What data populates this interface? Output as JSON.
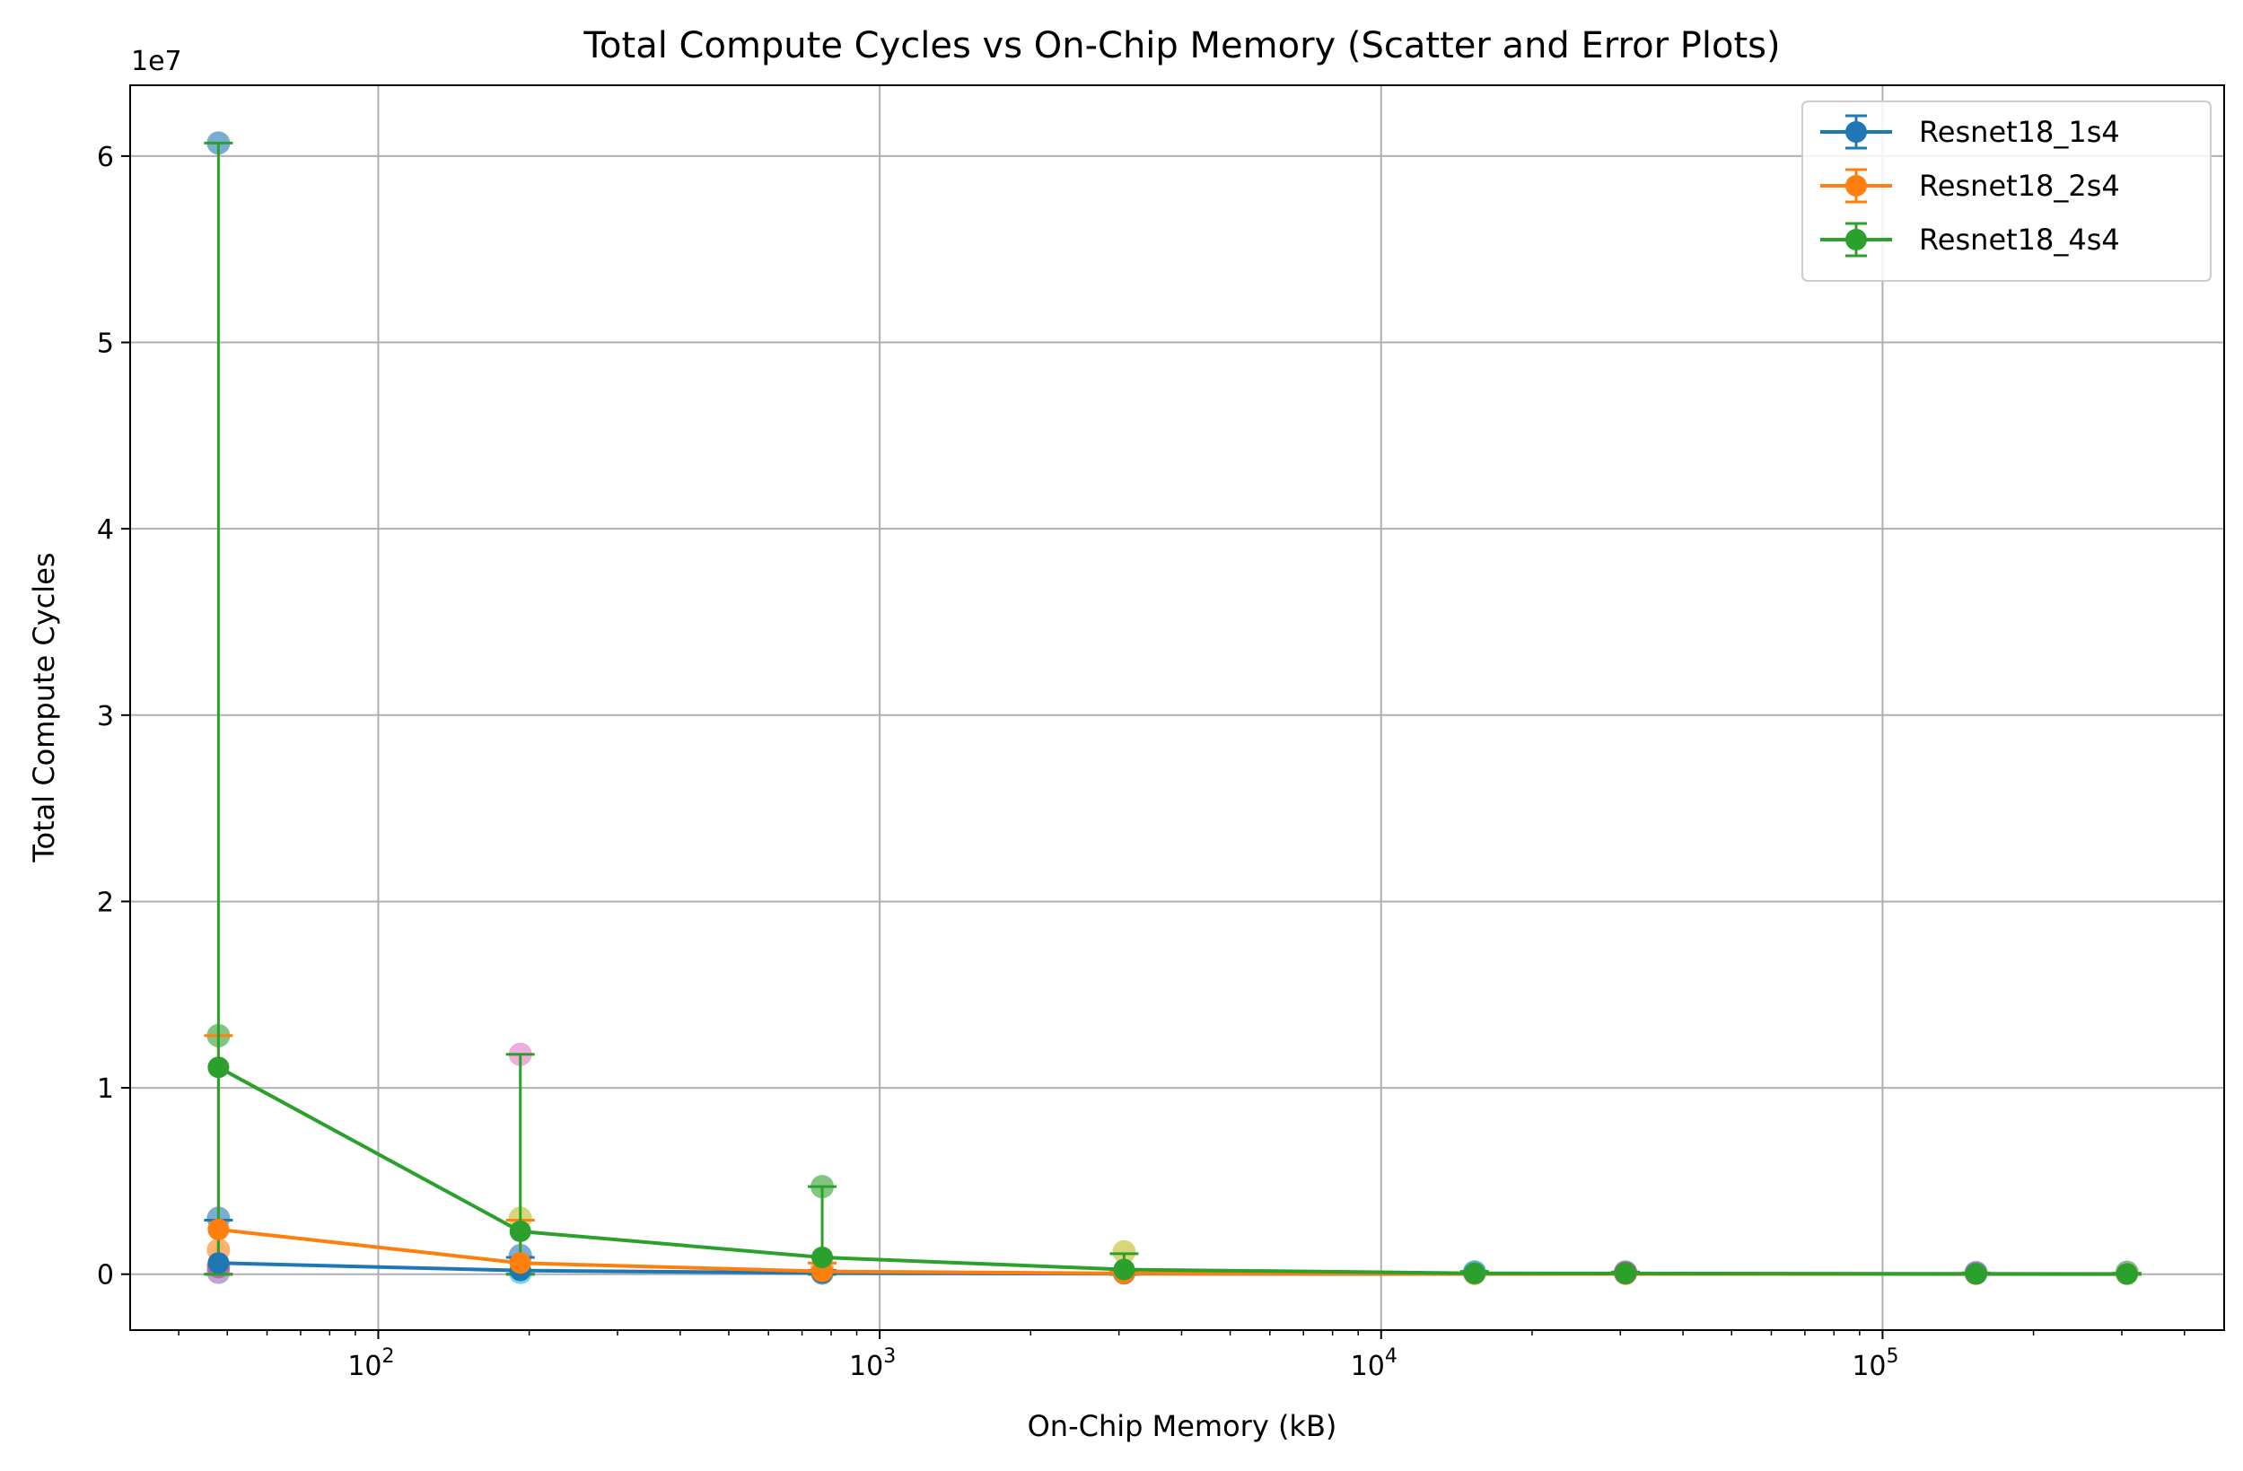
{
  "chart_data": {
    "type": "scatter",
    "title": "Total Compute Cycles vs On-Chip Memory (Scatter and Error Plots)",
    "xlabel": "On-Chip Memory (kB)",
    "ylabel": "Total Compute Cycles",
    "y_offset_label": "1e7",
    "x_scale": "log",
    "xlim": [
      32,
      480000
    ],
    "ylim": [
      -3000000,
      63800000
    ],
    "x_ticks": [
      {
        "value": 100,
        "base": "10",
        "exp": "2"
      },
      {
        "value": 1000,
        "base": "10",
        "exp": "3"
      },
      {
        "value": 10000,
        "base": "10",
        "exp": "4"
      },
      {
        "value": 100000,
        "base": "10",
        "exp": "5"
      }
    ],
    "y_ticks": [
      {
        "value": 0,
        "label": "0"
      },
      {
        "value": 10000000,
        "label": "1"
      },
      {
        "value": 20000000,
        "label": "2"
      },
      {
        "value": 30000000,
        "label": "3"
      },
      {
        "value": 40000000,
        "label": "4"
      },
      {
        "value": 50000000,
        "label": "5"
      },
      {
        "value": 60000000,
        "label": "6"
      }
    ],
    "grid": true,
    "legend_position": "top-right",
    "x": [
      48,
      192,
      768,
      3072,
      15360,
      30720,
      153600,
      307200
    ],
    "series": [
      {
        "name": "Resnet18_1s4",
        "color": "#1f77b4",
        "values": [
          600000,
          200000,
          60000,
          20000,
          10000,
          8000,
          6000,
          5000
        ],
        "err_low": [
          600000,
          200000,
          60000,
          20000,
          10000,
          8000,
          6000,
          5000
        ],
        "err_high": [
          2300000,
          700000,
          150000,
          40000,
          20000,
          15000,
          10000,
          8000
        ]
      },
      {
        "name": "Resnet18_2s4",
        "color": "#ff7f0e",
        "values": [
          2400000,
          600000,
          150000,
          40000,
          15000,
          12000,
          8000,
          6000
        ],
        "err_low": [
          2400000,
          600000,
          150000,
          40000,
          15000,
          12000,
          8000,
          6000
        ],
        "err_high": [
          10400000,
          2300000,
          450000,
          120000,
          30000,
          20000,
          15000,
          10000
        ]
      },
      {
        "name": "Resnet18_4s4",
        "color": "#2ca02c",
        "values": [
          11100000,
          2300000,
          900000,
          250000,
          50000,
          40000,
          20000,
          15000
        ],
        "err_low": [
          11100000,
          2300000,
          900000,
          250000,
          50000,
          40000,
          20000,
          15000
        ],
        "err_high": [
          49600000,
          9500000,
          3800000,
          850000,
          100000,
          80000,
          50000,
          40000
        ]
      }
    ],
    "scatter_points": [
      {
        "x": 48,
        "y": 60700000,
        "color": "#1f77b4"
      },
      {
        "x": 48,
        "y": 12800000,
        "color": "#2ca02c"
      },
      {
        "x": 48,
        "y": 3000000,
        "color": "#1f77b4"
      },
      {
        "x": 48,
        "y": 1300000,
        "color": "#ff7f0e"
      },
      {
        "x": 48,
        "y": 400000,
        "color": "#d62728"
      },
      {
        "x": 48,
        "y": 100000,
        "color": "#9467bd"
      },
      {
        "x": 192,
        "y": 11800000,
        "color": "#e377c2"
      },
      {
        "x": 192,
        "y": 3000000,
        "color": "#bcbd22"
      },
      {
        "x": 192,
        "y": 1000000,
        "color": "#1f77b4"
      },
      {
        "x": 192,
        "y": 100000,
        "color": "#17becf"
      },
      {
        "x": 768,
        "y": 4700000,
        "color": "#2ca02c"
      },
      {
        "x": 768,
        "y": 300000,
        "color": "#ff7f0e"
      },
      {
        "x": 768,
        "y": 50000,
        "color": "#7f7f7f"
      },
      {
        "x": 3072,
        "y": 1200000,
        "color": "#bcbd22"
      },
      {
        "x": 3072,
        "y": 100000,
        "color": "#8c564b"
      },
      {
        "x": 15360,
        "y": 120000,
        "color": "#1f77b4"
      },
      {
        "x": 15360,
        "y": 60000,
        "color": "#17becf"
      },
      {
        "x": 30720,
        "y": 120000,
        "color": "#1f77b4"
      },
      {
        "x": 30720,
        "y": 50000,
        "color": "#d62728"
      },
      {
        "x": 153600,
        "y": 100000,
        "color": "#e377c2"
      },
      {
        "x": 153600,
        "y": 50000,
        "color": "#1f77b4"
      },
      {
        "x": 307200,
        "y": 100000,
        "color": "#1f77b4"
      },
      {
        "x": 307200,
        "y": 50000,
        "color": "#bcbd22"
      }
    ]
  }
}
